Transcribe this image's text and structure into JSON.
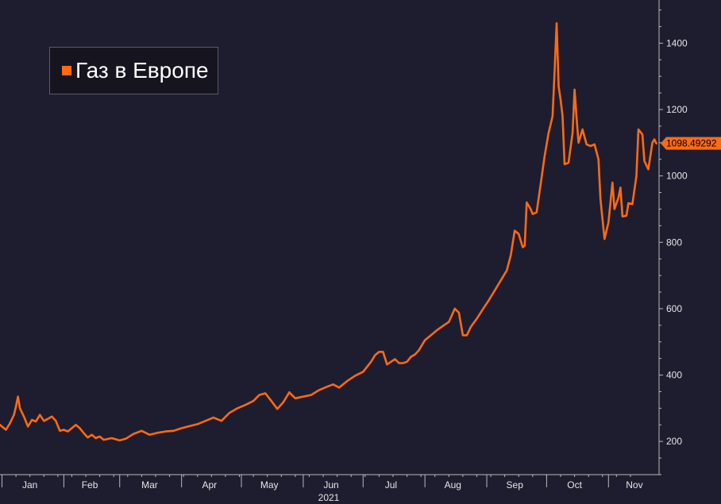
{
  "chart_data": {
    "type": "line",
    "title": "",
    "xlabel": "2021",
    "ylabel": "",
    "ylim": [
      100,
      1530
    ],
    "yticks": [
      200,
      400,
      600,
      800,
      1000,
      1200,
      1400
    ],
    "xlim": [
      "2020-12-31",
      "2021-11-18"
    ],
    "month_ticks": [
      {
        "label": "Jan",
        "date": "2021-01-15"
      },
      {
        "label": "Feb",
        "date": "2021-02-14"
      },
      {
        "label": "Mar",
        "date": "2021-03-16"
      },
      {
        "label": "Apr",
        "date": "2021-04-15"
      },
      {
        "label": "May",
        "date": "2021-05-15"
      },
      {
        "label": "Jun",
        "date": "2021-06-15"
      },
      {
        "label": "Jul",
        "date": "2021-07-15"
      },
      {
        "label": "Aug",
        "date": "2021-08-15"
      },
      {
        "label": "Sep",
        "date": "2021-09-15"
      },
      {
        "label": "Oct",
        "date": "2021-10-15"
      },
      {
        "label": "Nov",
        "date": "2021-11-14"
      }
    ],
    "year_label": "2021",
    "last_value_label": "1098.49292",
    "legend": {
      "position": "top-left"
    },
    "grid": false,
    "series": [
      {
        "name": "Газ в Европе",
        "color": "#ff6a13",
        "points": [
          [
            "2020-12-31",
            250
          ],
          [
            "2021-01-03",
            235
          ],
          [
            "2021-01-05",
            255
          ],
          [
            "2021-01-07",
            280
          ],
          [
            "2021-01-08",
            305
          ],
          [
            "2021-01-09",
            335
          ],
          [
            "2021-01-10",
            300
          ],
          [
            "2021-01-12",
            275
          ],
          [
            "2021-01-14",
            245
          ],
          [
            "2021-01-16",
            265
          ],
          [
            "2021-01-18",
            260
          ],
          [
            "2021-01-20",
            280
          ],
          [
            "2021-01-22",
            262
          ],
          [
            "2021-01-24",
            268
          ],
          [
            "2021-01-26",
            275
          ],
          [
            "2021-01-28",
            262
          ],
          [
            "2021-01-30",
            232
          ],
          [
            "2021-02-01",
            235
          ],
          [
            "2021-02-03",
            230
          ],
          [
            "2021-02-05",
            240
          ],
          [
            "2021-02-07",
            250
          ],
          [
            "2021-02-09",
            240
          ],
          [
            "2021-02-11",
            225
          ],
          [
            "2021-02-13",
            212
          ],
          [
            "2021-02-15",
            220
          ],
          [
            "2021-02-17",
            210
          ],
          [
            "2021-02-19",
            215
          ],
          [
            "2021-02-21",
            205
          ],
          [
            "2021-02-25",
            210
          ],
          [
            "2021-03-01",
            203
          ],
          [
            "2021-03-04",
            208
          ],
          [
            "2021-03-08",
            223
          ],
          [
            "2021-03-12",
            232
          ],
          [
            "2021-03-16",
            220
          ],
          [
            "2021-03-20",
            226
          ],
          [
            "2021-03-24",
            230
          ],
          [
            "2021-03-28",
            232
          ],
          [
            "2021-04-01",
            240
          ],
          [
            "2021-04-05",
            246
          ],
          [
            "2021-04-09",
            252
          ],
          [
            "2021-04-13",
            262
          ],
          [
            "2021-04-17",
            272
          ],
          [
            "2021-04-21",
            262
          ],
          [
            "2021-04-25",
            286
          ],
          [
            "2021-04-29",
            300
          ],
          [
            "2021-05-03",
            310
          ],
          [
            "2021-05-07",
            322
          ],
          [
            "2021-05-10",
            340
          ],
          [
            "2021-05-13",
            345
          ],
          [
            "2021-05-16",
            322
          ],
          [
            "2021-05-19",
            298
          ],
          [
            "2021-05-22",
            318
          ],
          [
            "2021-05-25",
            348
          ],
          [
            "2021-05-28",
            330
          ],
          [
            "2021-06-01",
            335
          ],
          [
            "2021-06-05",
            340
          ],
          [
            "2021-06-09",
            355
          ],
          [
            "2021-06-13",
            365
          ],
          [
            "2021-06-16",
            372
          ],
          [
            "2021-06-19",
            362
          ],
          [
            "2021-06-23",
            382
          ],
          [
            "2021-06-27",
            398
          ],
          [
            "2021-07-01",
            410
          ],
          [
            "2021-07-05",
            440
          ],
          [
            "2021-07-07",
            460
          ],
          [
            "2021-07-09",
            470
          ],
          [
            "2021-07-11",
            470
          ],
          [
            "2021-07-13",
            432
          ],
          [
            "2021-07-15",
            440
          ],
          [
            "2021-07-17",
            448
          ],
          [
            "2021-07-19",
            436
          ],
          [
            "2021-07-21",
            436
          ],
          [
            "2021-07-23",
            440
          ],
          [
            "2021-07-25",
            455
          ],
          [
            "2021-07-27",
            462
          ],
          [
            "2021-07-29",
            475
          ],
          [
            "2021-08-01",
            505
          ],
          [
            "2021-08-04",
            520
          ],
          [
            "2021-08-07",
            535
          ],
          [
            "2021-08-10",
            548
          ],
          [
            "2021-08-13",
            560
          ],
          [
            "2021-08-16",
            600
          ],
          [
            "2021-08-18",
            588
          ],
          [
            "2021-08-20",
            520
          ],
          [
            "2021-08-22",
            520
          ],
          [
            "2021-08-24",
            545
          ],
          [
            "2021-08-27",
            570
          ],
          [
            "2021-08-30",
            598
          ],
          [
            "2021-09-02",
            625
          ],
          [
            "2021-09-05",
            655
          ],
          [
            "2021-09-08",
            685
          ],
          [
            "2021-09-11",
            715
          ],
          [
            "2021-09-13",
            760
          ],
          [
            "2021-09-15",
            835
          ],
          [
            "2021-09-17",
            825
          ],
          [
            "2021-09-19",
            785
          ],
          [
            "2021-09-20",
            790
          ],
          [
            "2021-09-21",
            920
          ],
          [
            "2021-09-23",
            900
          ],
          [
            "2021-09-24",
            885
          ],
          [
            "2021-09-26",
            890
          ],
          [
            "2021-09-28",
            975
          ],
          [
            "2021-09-30",
            1060
          ],
          [
            "2021-10-02",
            1130
          ],
          [
            "2021-10-04",
            1180
          ],
          [
            "2021-10-05",
            1320
          ],
          [
            "2021-10-06",
            1460
          ],
          [
            "2021-10-07",
            1270
          ],
          [
            "2021-10-08",
            1230
          ],
          [
            "2021-10-09",
            1180
          ],
          [
            "2021-10-10",
            1035
          ],
          [
            "2021-10-12",
            1040
          ],
          [
            "2021-10-14",
            1130
          ],
          [
            "2021-10-15",
            1260
          ],
          [
            "2021-10-16",
            1175
          ],
          [
            "2021-10-17",
            1100
          ],
          [
            "2021-10-19",
            1140
          ],
          [
            "2021-10-21",
            1095
          ],
          [
            "2021-10-23",
            1090
          ],
          [
            "2021-10-25",
            1095
          ],
          [
            "2021-10-27",
            1050
          ],
          [
            "2021-10-28",
            930
          ],
          [
            "2021-10-30",
            810
          ],
          [
            "2021-11-01",
            860
          ],
          [
            "2021-11-03",
            980
          ],
          [
            "2021-11-04",
            900
          ],
          [
            "2021-11-06",
            935
          ],
          [
            "2021-11-07",
            965
          ],
          [
            "2021-11-08",
            878
          ],
          [
            "2021-11-10",
            880
          ],
          [
            "2021-11-11",
            918
          ],
          [
            "2021-11-13",
            915
          ],
          [
            "2021-11-15",
            1000
          ],
          [
            "2021-11-16",
            1140
          ],
          [
            "2021-11-18",
            1125
          ],
          [
            "2021-11-19",
            1045
          ],
          [
            "2021-11-21",
            1020
          ],
          [
            "2021-11-23",
            1100
          ],
          [
            "2021-11-24",
            1110
          ],
          [
            "2021-11-25",
            1098
          ]
        ]
      }
    ]
  }
}
